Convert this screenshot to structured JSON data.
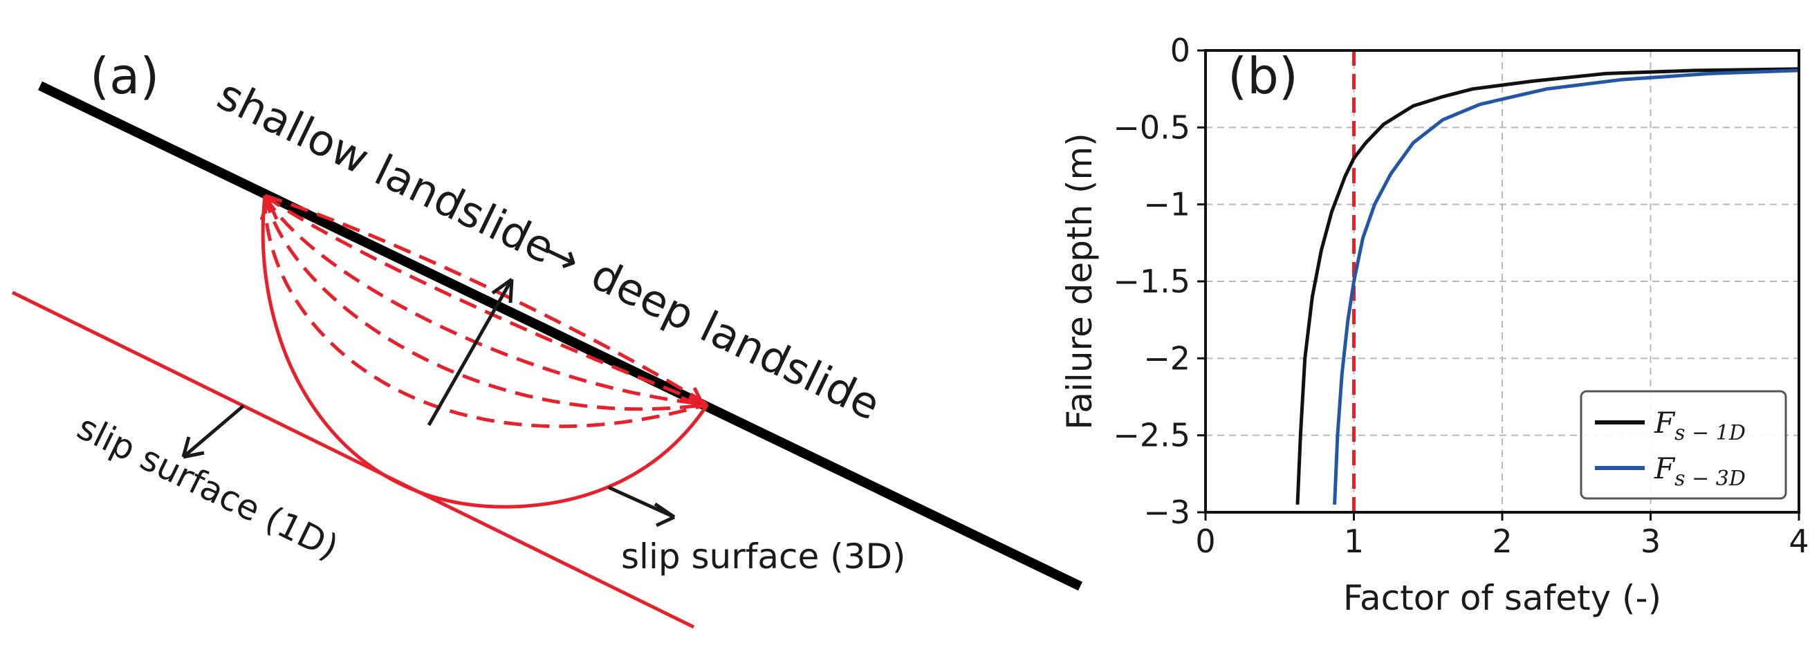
{
  "panel_a": {
    "label": "(a)",
    "title_line1": "shallow landslide",
    "arrow_glyph": "→",
    "title_line2": "deep landslide",
    "slip_1d": "slip surface (1D)",
    "slip_3d": "slip surface (3D)",
    "colors": {
      "ground": "#000000",
      "slip": "#e8202a",
      "arrow": "#1a1a1a"
    }
  },
  "chart_data": {
    "type": "line",
    "panel_label": "(b)",
    "title": "",
    "xlabel": "Factor of safety (-)",
    "ylabel": "Failure depth (m)",
    "xlim": [
      0,
      4
    ],
    "ylim": [
      -3,
      0
    ],
    "xticks": [
      0,
      1,
      2,
      3,
      4
    ],
    "xtick_labels": [
      "0",
      "1",
      "2",
      "3",
      "4"
    ],
    "yticks": [
      0,
      -0.5,
      -1,
      -1.5,
      -2,
      -2.5,
      -3
    ],
    "ytick_labels": [
      "0",
      "−0.5",
      "−1",
      "−1.5",
      "−2",
      "−2.5",
      "−3"
    ],
    "grid": true,
    "legend_position": "bottom-right",
    "reference_line": {
      "x": 1,
      "style": "dashed",
      "color": "#e8202a"
    },
    "series": [
      {
        "name_main": "F",
        "name_sub": "s − 1D",
        "color": "#111111",
        "points": [
          [
            0.62,
            -2.95
          ],
          [
            0.64,
            -2.5
          ],
          [
            0.67,
            -2.0
          ],
          [
            0.72,
            -1.6
          ],
          [
            0.78,
            -1.3
          ],
          [
            0.85,
            -1.05
          ],
          [
            0.94,
            -0.82
          ],
          [
            1.0,
            -0.7
          ],
          [
            1.08,
            -0.6
          ],
          [
            1.2,
            -0.48
          ],
          [
            1.4,
            -0.36
          ],
          [
            1.6,
            -0.3
          ],
          [
            1.8,
            -0.25
          ],
          [
            2.2,
            -0.2
          ],
          [
            2.7,
            -0.15
          ],
          [
            3.3,
            -0.13
          ],
          [
            4.0,
            -0.12
          ]
        ]
      },
      {
        "name_main": "F",
        "name_sub": "s − 3D",
        "color": "#2456a6",
        "points": [
          [
            0.87,
            -2.95
          ],
          [
            0.89,
            -2.5
          ],
          [
            0.92,
            -2.1
          ],
          [
            0.96,
            -1.75
          ],
          [
            1.0,
            -1.5
          ],
          [
            1.06,
            -1.22
          ],
          [
            1.14,
            -1.0
          ],
          [
            1.25,
            -0.8
          ],
          [
            1.4,
            -0.6
          ],
          [
            1.6,
            -0.45
          ],
          [
            1.85,
            -0.35
          ],
          [
            2.3,
            -0.25
          ],
          [
            2.8,
            -0.19
          ],
          [
            3.4,
            -0.15
          ],
          [
            4.0,
            -0.13
          ]
        ]
      }
    ]
  }
}
